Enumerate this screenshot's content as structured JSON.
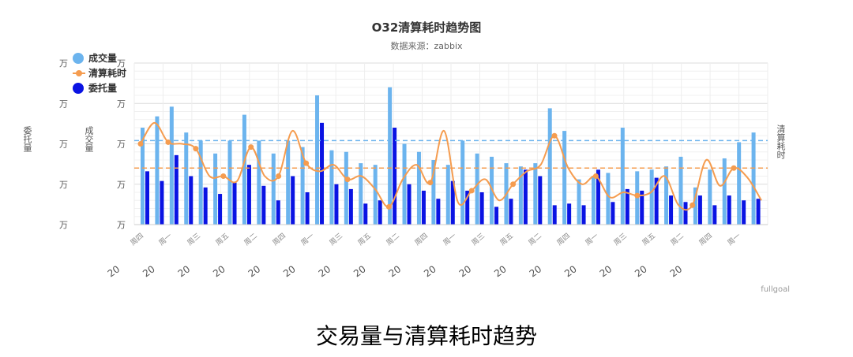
{
  "page": {
    "caption": "交易量与清算耗时趋势"
  },
  "chart_data": {
    "type": "bar",
    "title": "O32清算耗时趋势图",
    "subtitle": "数据来源：zabbix",
    "credit": "fullgoal",
    "y_axes": {
      "left_outer_name": "委托量",
      "left_inner_name": "成交量",
      "right_name": "清算耗时",
      "tick_unit": "万",
      "range": [
        0,
        100
      ]
    },
    "x_tick_labels": [
      "周四",
      "周一",
      "周三",
      "周五",
      "周二",
      "周四",
      "周一",
      "周三",
      "周五",
      "周二",
      "周四",
      "周一",
      "周三",
      "周五",
      "周二",
      "周四",
      "周一",
      "周三",
      "周五",
      "周二",
      "周四",
      "周一"
    ],
    "x_rotated_labels": [
      "20",
      "20",
      "20",
      "20",
      "20",
      "20",
      "20",
      "20",
      "20",
      "20",
      "20",
      "20",
      "20",
      "20",
      "20",
      "20",
      "20"
    ],
    "series": [
      {
        "name": "成交量",
        "color": "#6cb4ee",
        "values": [
          60,
          67,
          73,
          57,
          52,
          44,
          52,
          68,
          52,
          44,
          52,
          48,
          80,
          46,
          45,
          38,
          37,
          85,
          50,
          45,
          40,
          37,
          52,
          44,
          42,
          38,
          36,
          38,
          72,
          58,
          28,
          30,
          32,
          60,
          33,
          34,
          36,
          42,
          23,
          34,
          41,
          51,
          57
        ]
      },
      {
        "name": "委托量",
        "color": "#0a13e3",
        "values": [
          33,
          27,
          43,
          30,
          23,
          19,
          26,
          37,
          24,
          15,
          30,
          20,
          63,
          25,
          22,
          13,
          15,
          60,
          25,
          21,
          16,
          27,
          21,
          20,
          11,
          16,
          34,
          30,
          12,
          13,
          12,
          34,
          14,
          22,
          21,
          29,
          18,
          14,
          18,
          12,
          18,
          15,
          16
        ]
      },
      {
        "name": "清算耗时",
        "color": "#f59c4f",
        "values": [
          50,
          63,
          51,
          50,
          47,
          30,
          30,
          27,
          48,
          30,
          30,
          58,
          38,
          33,
          37,
          28,
          30,
          22,
          11,
          28,
          37,
          26,
          58,
          14,
          21,
          28,
          15,
          25,
          33,
          37,
          55,
          35,
          25,
          30,
          17,
          20,
          18,
          20,
          30,
          12,
          12,
          40,
          24,
          35,
          29,
          15
        ]
      }
    ],
    "reference_lines": [
      {
        "series": "成交量",
        "value": 52
      },
      {
        "series": "清算耗时",
        "value": 35
      }
    ],
    "legend_position": "top-left",
    "grid": true
  }
}
